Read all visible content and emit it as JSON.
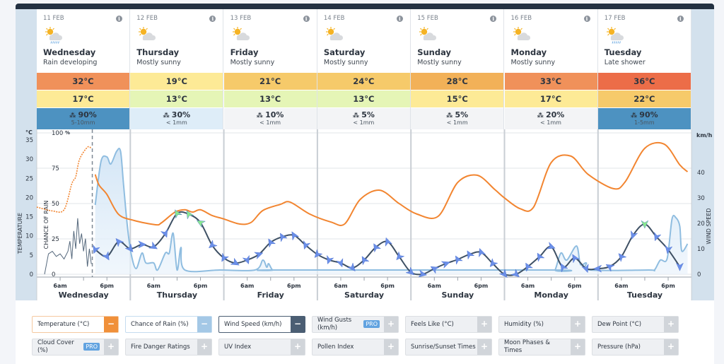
{
  "days": [
    {
      "date": "11 FEB",
      "name": "Wednesday",
      "desc": "Rain developing",
      "icon": "sun-cloud-rain-icon",
      "max": "32°C",
      "min": "17°C",
      "rain": "90%",
      "amount": "5-10mm",
      "max_color": "#f0915a",
      "min_color": "#fdea96",
      "rain_color": "#4d92c1"
    },
    {
      "date": "12 FEB",
      "name": "Thursday",
      "desc": "Mostly sunny",
      "icon": "sun-cloud-icon",
      "max": "19°C",
      "min": "13°C",
      "rain": "30%",
      "amount": "< 1mm",
      "max_color": "#fdea96",
      "min_color": "#e5f5b6",
      "rain_color": "#deedf8"
    },
    {
      "date": "13 FEB",
      "name": "Friday",
      "desc": "Mostly sunny",
      "icon": "sun-cloud-icon",
      "max": "21°C",
      "min": "13°C",
      "rain": "10%",
      "amount": "< 1mm",
      "max_color": "#f6ca6a",
      "min_color": "#e5f5b6",
      "rain_color": "#f3f4f6"
    },
    {
      "date": "14 FEB",
      "name": "Saturday",
      "desc": "Mostly sunny",
      "icon": "sun-cloud-icon",
      "max": "24°C",
      "min": "13°C",
      "rain": "5%",
      "amount": "< 1mm",
      "max_color": "#f6ca6a",
      "min_color": "#e5f5b6",
      "rain_color": "#f3f4f6"
    },
    {
      "date": "15 FEB",
      "name": "Sunday",
      "desc": "Mostly sunny",
      "icon": "sun-cloud-icon",
      "max": "28°C",
      "min": "15°C",
      "rain": "5%",
      "amount": "< 1mm",
      "max_color": "#f2b158",
      "min_color": "#fdea96",
      "rain_color": "#f3f4f6"
    },
    {
      "date": "16 FEB",
      "name": "Monday",
      "desc": "Mostly sunny",
      "icon": "sun-cloud-icon",
      "max": "33°C",
      "min": "17°C",
      "rain": "20%",
      "amount": "< 1mm",
      "max_color": "#f0915a",
      "min_color": "#fdea96",
      "rain_color": "#f3f4f6"
    },
    {
      "date": "17 FEB",
      "name": "Tuesday",
      "desc": "Late shower",
      "icon": "sun-cloud-rain-icon",
      "max": "36°C",
      "min": "22°C",
      "rain": "90%",
      "amount": "1-5mm",
      "max_color": "#ec6d48",
      "min_color": "#f6ca6a",
      "rain_color": "#4d92c1"
    }
  ],
  "chart_data": {
    "type": "line",
    "x_tick_labels": [
      "6am",
      "6pm"
    ],
    "x_days": [
      "Wednesday",
      "Thursday",
      "Friday",
      "Saturday",
      "Sunday",
      "Monday",
      "Tuesday"
    ],
    "now": "Wed 14:15",
    "axes": {
      "temperature": {
        "unit": "°C",
        "label": "TEMPERATURE",
        "range": [
          0,
          35
        ],
        "ticks": [
          0,
          5,
          10,
          15,
          20,
          25,
          30,
          35
        ]
      },
      "rain": {
        "unit": "%",
        "label": "CHANCE OF RAIN",
        "range": [
          0,
          100
        ],
        "ticks": [
          0,
          25,
          50,
          75,
          100
        ]
      },
      "wind": {
        "unit": "km/h",
        "label": "WIND SPEED",
        "range": [
          0,
          52.8
        ],
        "ticks": [
          0,
          10,
          20,
          30,
          40
        ]
      }
    },
    "grid": true,
    "colors": {
      "temperature": "#f28530",
      "rain": "#8fbde0",
      "wind": "#3e5064",
      "arrow": "#6b8fe8",
      "arrow_strong": "#8ae88e"
    },
    "temperature_past": [
      [
        "Wed 00:00",
        17.5
      ],
      [
        "Wed 04:00",
        16.5
      ],
      [
        "Wed 07:00",
        16.8
      ],
      [
        "Wed 09:00",
        23.6
      ],
      [
        "Wed 10:00",
        25.4
      ],
      [
        "Wed 11:00",
        30
      ],
      [
        "Wed 13:00",
        33.1
      ],
      [
        "Wed 14:00",
        32.8
      ]
    ],
    "temperature": [
      [
        "Wed 15:00",
        26
      ],
      [
        "Wed 16:00",
        23.2
      ],
      [
        "Wed 18:00",
        20.8
      ],
      [
        "Wed 21:00",
        15.6
      ],
      [
        "Thu 01:00",
        14
      ],
      [
        "Thu 06:30",
        12.9
      ],
      [
        "Thu 08:00",
        13.4
      ],
      [
        "Thu 11:30",
        16.2
      ],
      [
        "Thu 14:00",
        16.8
      ],
      [
        "Thu 16:00",
        16.2
      ],
      [
        "Thu 18:00",
        16.8
      ],
      [
        "Thu 21:00",
        15.3
      ],
      [
        "Fri 00:00",
        14.4
      ],
      [
        "Fri 04:00",
        13.1
      ],
      [
        "Fri 07:00",
        13.5
      ],
      [
        "Fri 10:00",
        16.6
      ],
      [
        "Fri 14:30",
        18.2
      ],
      [
        "Fri 17:00",
        18.8
      ],
      [
        "Fri 22:00",
        15.7
      ],
      [
        "Sat 03:30",
        13.6
      ],
      [
        "Sat 07:00",
        13.1
      ],
      [
        "Sat 11:00",
        19.5
      ],
      [
        "Sat 16:00",
        21.9
      ],
      [
        "Sat 21:00",
        18.4
      ],
      [
        "Sun 01:30",
        15.7
      ],
      [
        "Sun 07:00",
        15.1
      ],
      [
        "Sun 12:00",
        23.9
      ],
      [
        "Sun 17:00",
        25.8
      ],
      [
        "Sun 21:30",
        22.1
      ],
      [
        "Mon 00:00",
        19.9
      ],
      [
        "Mon 04:00",
        17.1
      ],
      [
        "Mon 07:30",
        17.5
      ],
      [
        "Mon 12:00",
        29.1
      ],
      [
        "Mon 17:00",
        30.8
      ],
      [
        "Mon 21:30",
        26
      ],
      [
        "Tue 04:00",
        22.3
      ],
      [
        "Tue 07:00",
        24.1
      ],
      [
        "Tue 12:00",
        32.8
      ],
      [
        "Tue 17:00",
        33.9
      ],
      [
        "Tue 21:00",
        28.5
      ],
      [
        "Tue 23:00",
        26.7
      ]
    ],
    "rain": [
      [
        "Wed 15:00",
        49
      ],
      [
        "Wed 16:30",
        80
      ],
      [
        "Wed 18:00",
        83
      ],
      [
        "Wed 19:00",
        78
      ],
      [
        "Wed 20:30",
        87
      ],
      [
        "Wed 21:30",
        87
      ],
      [
        "Wed 22:15",
        64
      ],
      [
        "Wed 23:15",
        34
      ],
      [
        "Thu 00:15",
        14
      ],
      [
        "Thu 01:30",
        4
      ],
      [
        "Thu 03:00",
        15
      ],
      [
        "Thu 04:00",
        8
      ],
      [
        "Thu 06:00",
        8
      ],
      [
        "Thu 07:00",
        3
      ],
      [
        "Thu 09:00",
        15
      ],
      [
        "Thu 10:00",
        15
      ],
      [
        "Thu 11:00",
        29
      ],
      [
        "Thu 12:00",
        3
      ],
      [
        "Thu 13:00",
        19
      ],
      [
        "Thu 14:00",
        3
      ],
      [
        "Thu 23:00",
        3
      ],
      [
        "Fri 08:00",
        3
      ],
      [
        "Fri 10:00",
        10
      ],
      [
        "Fri 11:00",
        5
      ],
      [
        "Fri 11:30",
        7.5
      ],
      [
        "Fri 12:30",
        3
      ],
      [
        "Fri 14:00",
        3
      ],
      [
        "Mon 12:00",
        3
      ],
      [
        "Mon 13:00",
        3
      ],
      [
        "Mon 14:30",
        15
      ],
      [
        "Mon 16:00",
        10
      ],
      [
        "Mon 18:30",
        20
      ],
      [
        "Mon 19:30",
        7
      ],
      [
        "Mon 21:00",
        8
      ],
      [
        "Mon 22:00",
        3
      ],
      [
        "Tue 13:00",
        3
      ],
      [
        "Tue 14:30",
        3
      ],
      [
        "Tue 16:00",
        10
      ],
      [
        "Tue 17:45",
        11
      ],
      [
        "Tue 19:00",
        39
      ],
      [
        "Tue 20:00",
        40
      ],
      [
        "Tue 21:00",
        34
      ],
      [
        "Tue 21:30",
        16.5
      ],
      [
        "Tue 23:00",
        21.5
      ]
    ],
    "wind_past": [
      [
        "Wed 02:00",
        0
      ],
      [
        "Wed 03:00",
        8
      ],
      [
        "Wed 04:00",
        9
      ],
      [
        "Wed 05:00",
        7
      ],
      [
        "Wed 06:00",
        8
      ],
      [
        "Wed 07:00",
        6
      ],
      [
        "Wed 08:00",
        9
      ],
      [
        "Wed 08:30",
        13
      ],
      [
        "Wed 09:00",
        6
      ],
      [
        "Wed 09:30",
        17
      ],
      [
        "Wed 10:00",
        10
      ],
      [
        "Wed 10:30",
        22
      ],
      [
        "Wed 11:00",
        12
      ],
      [
        "Wed 11:30",
        16
      ],
      [
        "Wed 12:00",
        9
      ],
      [
        "Wed 12:30",
        14
      ],
      [
        "Wed 13:00",
        3
      ],
      [
        "Wed 13:30",
        10
      ],
      [
        "Wed 14:00",
        4
      ]
    ],
    "wind": [
      [
        "Wed 15:00",
        9.7,
        200
      ],
      [
        "Wed 18:00",
        7,
        150
      ],
      [
        "Wed 21:00",
        12.8,
        320
      ],
      [
        "Thu 00:00",
        10,
        140
      ],
      [
        "Thu 03:00",
        11.7,
        90
      ],
      [
        "Thu 06:00",
        10.8,
        120
      ],
      [
        "Thu 09:00",
        16,
        160
      ],
      [
        "Thu 12:00",
        23.9,
        330
      ],
      [
        "Thu 15:00",
        23.6,
        330
      ],
      [
        "Thu 18:00",
        20.3,
        300
      ],
      [
        "Thu 21:00",
        11.4,
        230
      ],
      [
        "Fri 00:00",
        6.4,
        210
      ],
      [
        "Fri 03:00",
        4.4,
        120
      ],
      [
        "Fri 06:00",
        5.6,
        160
      ],
      [
        "Fri 09:00",
        7.8,
        70
      ],
      [
        "Fri 12:00",
        12.5,
        330
      ],
      [
        "Fri 15:00",
        14.7,
        330
      ],
      [
        "Fri 18:00",
        15.3,
        330
      ],
      [
        "Fri 21:00",
        11.4,
        200
      ],
      [
        "Sat 00:00",
        7.8,
        220
      ],
      [
        "Sat 03:00",
        5.6,
        200
      ],
      [
        "Sat 06:00",
        4.4,
        160
      ],
      [
        "Sat 09:00",
        2.5,
        140
      ],
      [
        "Sat 12:00",
        5.6,
        330
      ],
      [
        "Sat 15:00",
        10.6,
        330
      ],
      [
        "Sat 18:00",
        12.8,
        340
      ],
      [
        "Sat 21:00",
        6.9,
        220
      ],
      [
        "Sun 00:00",
        0.8,
        130
      ],
      [
        "Sun 03:00",
        0,
        100
      ],
      [
        "Sun 06:00",
        2.2,
        300
      ],
      [
        "Sun 09:00",
        4.2,
        70
      ],
      [
        "Sun 12:00",
        5.8,
        330
      ],
      [
        "Sun 15:00",
        7.8,
        330
      ],
      [
        "Sun 18:00",
        8.6,
        340
      ],
      [
        "Sun 21:00",
        4.2,
        220
      ],
      [
        "Mon 00:00",
        0,
        140
      ],
      [
        "Mon 03:00",
        0,
        130
      ],
      [
        "Mon 06:00",
        3,
        330
      ],
      [
        "Mon 09:00",
        6.9,
        330
      ],
      [
        "Mon 12:00",
        10.8,
        110
      ],
      [
        "Mon 15:00",
        2.8,
        330
      ],
      [
        "Mon 18:00",
        6.4,
        330
      ],
      [
        "Mon 21:00",
        2.2,
        160
      ],
      [
        "Tue 00:00",
        2.2,
        270
      ],
      [
        "Tue 03:00",
        3,
        300
      ],
      [
        "Tue 06:00",
        6.9,
        320
      ],
      [
        "Tue 09:00",
        15.3,
        200
      ],
      [
        "Tue 12:00",
        19.7,
        180
      ],
      [
        "Tue 15:00",
        14.7,
        200
      ],
      [
        "Tue 18:00",
        9.7,
        190
      ],
      [
        "Tue 21:00",
        3,
        180
      ]
    ]
  },
  "legend": [
    {
      "label": "Temperature (°C)",
      "state": "on",
      "color": "#f0903a",
      "border": "#f5c9a0",
      "btn": "−"
    },
    {
      "label": "Chance of Rain (%)",
      "state": "on",
      "color": "#a4c8e6",
      "border": "#c5dcef",
      "btn": "−"
    },
    {
      "label": "Wind Speed (km/h)",
      "state": "on",
      "color": "#4b5e73",
      "border": "#4b5e73",
      "btn": "−"
    },
    {
      "label": "Wind Gusts (km/h)",
      "state": "off",
      "pro": "PRO",
      "btn": "+"
    },
    {
      "label": "Feels Like (°C)",
      "state": "off",
      "btn": "+"
    },
    {
      "label": "Humidity (%)",
      "state": "off",
      "btn": "+"
    },
    {
      "label": "Dew Point (°C)",
      "state": "off",
      "btn": "+"
    },
    {
      "label": "Cloud Cover (%)",
      "state": "off",
      "pro": "PRO",
      "btn": "+"
    },
    {
      "label": "Fire Danger Ratings",
      "state": "off",
      "btn": "+"
    },
    {
      "label": "UV Index",
      "state": "off",
      "btn": "+"
    },
    {
      "label": "Pollen Index",
      "state": "off",
      "btn": "+"
    },
    {
      "label": "Sunrise/Sunset Times",
      "state": "off",
      "btn": "+"
    },
    {
      "label": "Moon Phases & Times",
      "state": "off",
      "btn": "+"
    },
    {
      "label": "Pressure (hPa)",
      "state": "off",
      "btn": "+"
    }
  ]
}
